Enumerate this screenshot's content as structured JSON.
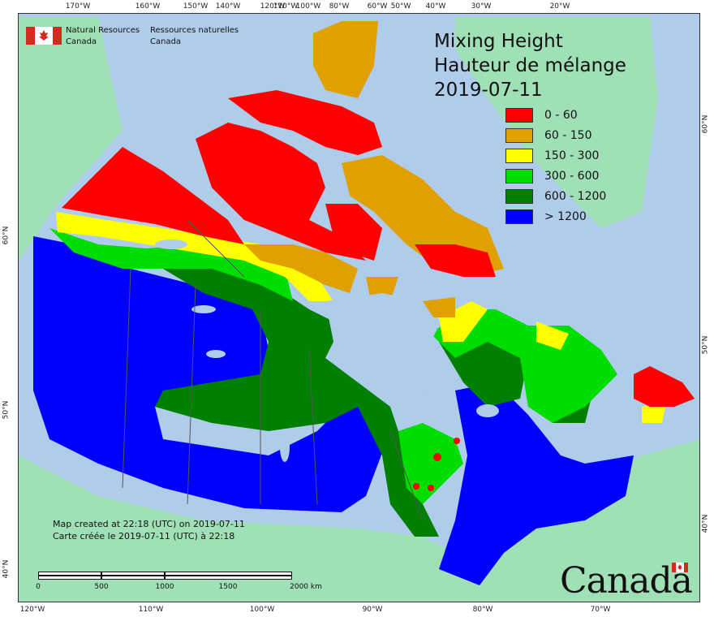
{
  "title": {
    "line1": "Mixing Height",
    "line2": "Hauteur de mélange",
    "date": "2019-07-11"
  },
  "legend": [
    {
      "label": "0 - 60",
      "color": "#ff0000"
    },
    {
      "label": "60 - 150",
      "color": "#dfa000"
    },
    {
      "label": "150 - 300",
      "color": "#ffff00"
    },
    {
      "label": "300 - 600",
      "color": "#00dd00"
    },
    {
      "label": "600 - 1200",
      "color": "#007f00"
    },
    {
      "label": "> 1200",
      "color": "#0000ff"
    }
  ],
  "agency": {
    "en_line1": "Natural Resources",
    "en_line2": "Canada",
    "fr_line1": "Ressources naturelles",
    "fr_line2": "Canada"
  },
  "created": {
    "en": "Map created at 22:18 (UTC) on 2019-07-11",
    "fr": "Carte créée le 2019-07-11 (UTC) à 22:18"
  },
  "scalebar": {
    "labels": [
      "0",
      "500",
      "1000",
      "1500",
      "2000 km"
    ]
  },
  "ticks": {
    "top": [
      "170°W",
      "160°W",
      "150°W",
      "140°W",
      "120°W",
      "110°W",
      "100°W",
      "80°W",
      "60°W",
      "50°W",
      "40°W",
      "30°W",
      "20°W"
    ],
    "bottom": [
      "120°W",
      "110°W",
      "100°W",
      "90°W",
      "80°W",
      "70°W"
    ],
    "left": [
      "60°N",
      "50°N",
      "40°N"
    ],
    "right": [
      "60°N",
      "50°N",
      "40°N"
    ]
  },
  "wordmark": "Canada",
  "colors": {
    "ocean": "#afcdea",
    "land_outside": "#9fe0b6",
    "boundary": "#555555"
  }
}
